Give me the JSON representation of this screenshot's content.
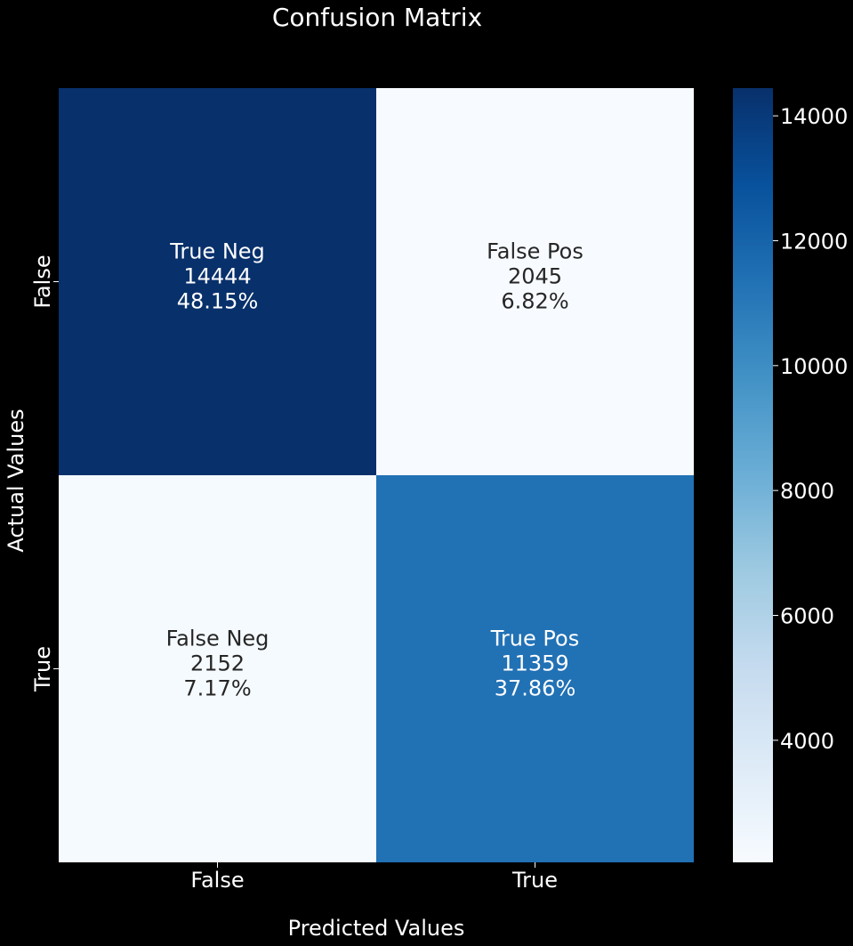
{
  "chart_data": {
    "type": "heatmap",
    "title": "Confusion Matrix",
    "xlabel": "Predicted Values",
    "ylabel": "Actual Values",
    "x_categories": [
      "False",
      "True"
    ],
    "y_categories": [
      "False",
      "True"
    ],
    "cells": [
      {
        "row": 0,
        "col": 0,
        "label": "True Neg",
        "count": "14444",
        "percent": "48.15%",
        "value": 14444
      },
      {
        "row": 0,
        "col": 1,
        "label": "False Pos",
        "count": "2045",
        "percent": "6.82%",
        "value": 2045
      },
      {
        "row": 1,
        "col": 0,
        "label": "False Neg",
        "count": "2152",
        "percent": "7.17%",
        "value": 2152
      },
      {
        "row": 1,
        "col": 1,
        "label": "True Pos",
        "count": "11359",
        "percent": "37.86%",
        "value": 11359
      }
    ],
    "colorbar": {
      "colormap": "Blues",
      "range": [
        2045,
        14444
      ],
      "ticks": [
        4000,
        6000,
        8000,
        10000,
        12000,
        14000
      ],
      "tick_labels": [
        "4000",
        "6000",
        "8000",
        "10000",
        "12000",
        "14000"
      ]
    },
    "colors": {
      "background": "#000000",
      "text_light": "#ffffff",
      "text_dark": "#262626"
    }
  }
}
